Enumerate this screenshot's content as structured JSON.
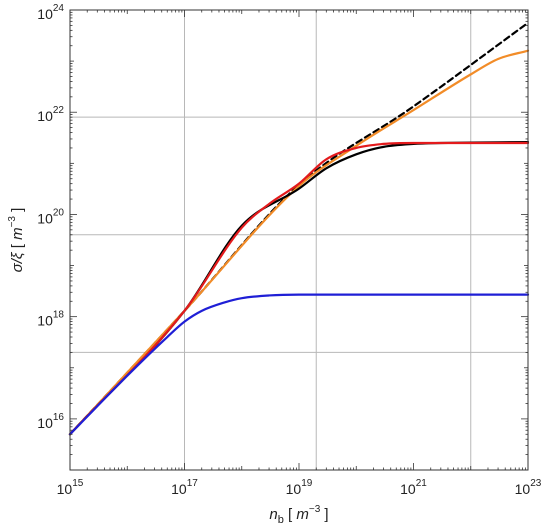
{
  "chart_data": {
    "type": "line",
    "x_scale": "log",
    "y_scale": "log",
    "xlim": [
      1000000000000000.0,
      1e+23
    ],
    "ylim": [
      1000000000000000.0,
      1e+24
    ],
    "grid": true,
    "x_ticks": [
      {
        "value": 1000000000000000.0,
        "base": "10",
        "exp": "15"
      },
      {
        "value": 1e+17,
        "base": "10",
        "exp": "17"
      },
      {
        "value": 1e+19,
        "base": "10",
        "exp": "19"
      },
      {
        "value": 1e+21,
        "base": "10",
        "exp": "21"
      },
      {
        "value": 1e+23,
        "base": "10",
        "exp": "23"
      }
    ],
    "y_ticks": [
      {
        "value": 1e+16,
        "base": "10",
        "exp": "16"
      },
      {
        "value": 1e+18,
        "base": "10",
        "exp": "18"
      },
      {
        "value": 1e+20,
        "base": "10",
        "exp": "20"
      },
      {
        "value": 1e+22,
        "base": "10",
        "exp": "22"
      },
      {
        "value": 1e+24,
        "base": "10",
        "exp": "24"
      }
    ],
    "x_gridlines": [
      1e+17,
      2e+19,
      1e+22
    ],
    "y_gridlines": [
      2e+17,
      4e+19,
      8e+21
    ],
    "xlabel": {
      "var": "n",
      "sub": "b",
      "open": " [ ",
      "unit": "m",
      "exp": "−3",
      "close": " ]"
    },
    "ylabel": {
      "var": "σ/ξ",
      "open": " [ ",
      "unit": "m",
      "exp": "−3",
      "close": " ]"
    },
    "series": [
      {
        "color": "#000000",
        "dash": true,
        "x": [
          1000000000000000.0,
          1e+17,
          1e+19,
          1e+21,
          1e+23
        ],
        "y": [
          5000000000000000.0,
          1.3e+18,
          3.8e+20,
          1.3e+22,
          5.6e+23
        ]
      },
      {
        "color": "#f28c28",
        "dash": false,
        "x": [
          1000000000000000.0,
          1e+17,
          1e+19,
          1e+20,
          1e+21,
          1e+22,
          3e+22,
          1e+23
        ],
        "y": [
          5000000000000000.0,
          1.3e+18,
          3.6e+20,
          2.2e+21,
          1.1e+22,
          5.5e+22,
          1.1e+23,
          1.6e+23
        ]
      },
      {
        "color": "#000000",
        "dash": false,
        "x": [
          1000000000000000.0,
          1e+17,
          1e+18,
          1e+19,
          3e+19,
          1e+20,
          3e+20,
          1e+21,
          3e+21,
          1e+22,
          1e+23
        ],
        "y": [
          5000000000000000.0,
          1.3e+18,
          6e+19,
          3.2e+20,
          8e+20,
          1.5e+21,
          2.1e+21,
          2.4e+21,
          2.5e+21,
          2.55e+21,
          2.6e+21
        ]
      },
      {
        "color": "#e31a1c",
        "dash": false,
        "x": [
          1000000000000000.0,
          1e+17,
          1e+18,
          3e+18,
          1e+19,
          3e+19,
          1e+20,
          3e+20,
          1e+21,
          1e+22,
          1e+23
        ],
        "y": [
          5000000000000000.0,
          1.3e+18,
          5.5e+19,
          1.6e+20,
          4e+20,
          1.2e+21,
          2e+21,
          2.4e+21,
          2.5e+21,
          2.5e+21,
          2.5e+21
        ]
      },
      {
        "color": "#1f1fd6",
        "dash": false,
        "x": [
          1000000000000000.0,
          1e+16,
          5e+16,
          1e+17,
          2e+17,
          5e+17,
          1e+18,
          3e+18,
          1e+19,
          1e+20,
          1e+23
        ],
        "y": [
          5000000000000000.0,
          7e+16,
          4e+17,
          8e+17,
          1.3e+18,
          1.9e+18,
          2.3e+18,
          2.6e+18,
          2.7e+18,
          2.7e+18,
          2.7e+18
        ]
      }
    ]
  }
}
